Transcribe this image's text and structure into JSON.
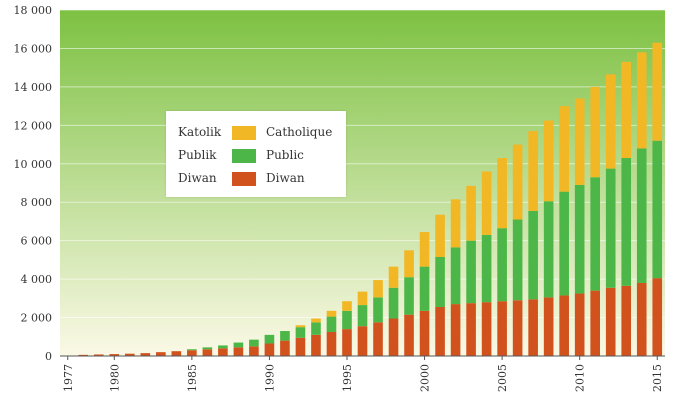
{
  "chart_data": {
    "type": "bar",
    "stacked": true,
    "x": [
      1977,
      1978,
      1979,
      1980,
      1981,
      1982,
      1983,
      1984,
      1985,
      1986,
      1987,
      1988,
      1989,
      1990,
      1991,
      1992,
      1993,
      1994,
      1995,
      1996,
      1997,
      1998,
      1999,
      2000,
      2001,
      2002,
      2003,
      2004,
      2005,
      2006,
      2007,
      2008,
      2009,
      2010,
      2011,
      2012,
      2013,
      2014,
      2015
    ],
    "x_tick_labels": [
      "1977",
      "1980",
      "1985",
      "1990",
      "1995",
      "2000",
      "2005",
      "2010",
      "2015"
    ],
    "y_tick_labels": [
      "0",
      "2 000",
      "4 000",
      "6 000",
      "8 000",
      "10 000",
      "12 000",
      "14 000",
      "16 000",
      "18 000"
    ],
    "ylim": [
      0,
      18000
    ],
    "series": [
      {
        "name": "Diwan",
        "color": "#d2521e",
        "values": [
          20,
          60,
          80,
          100,
          120,
          150,
          200,
          250,
          300,
          350,
          400,
          450,
          500,
          650,
          800,
          950,
          1100,
          1250,
          1400,
          1550,
          1750,
          1950,
          2150,
          2350,
          2550,
          2700,
          2750,
          2800,
          2850,
          2900,
          2950,
          3050,
          3150,
          3250,
          3400,
          3550,
          3650,
          3800,
          4050
        ]
      },
      {
        "name": "Public",
        "color": "#4cb748",
        "values": [
          0,
          0,
          0,
          0,
          0,
          0,
          0,
          0,
          50,
          100,
          150,
          250,
          350,
          450,
          500,
          550,
          650,
          800,
          950,
          1100,
          1300,
          1600,
          1950,
          2300,
          2600,
          2950,
          3250,
          3500,
          3800,
          4200,
          4600,
          5000,
          5400,
          5650,
          5900,
          6200,
          6650,
          7000,
          7150
        ]
      },
      {
        "name": "Catholique",
        "color": "#f2b724",
        "values": [
          0,
          0,
          0,
          0,
          0,
          0,
          0,
          0,
          0,
          0,
          0,
          0,
          0,
          0,
          0,
          100,
          200,
          300,
          500,
          700,
          900,
          1100,
          1400,
          1800,
          2200,
          2500,
          2850,
          3300,
          3650,
          3900,
          4150,
          4200,
          4450,
          4500,
          4700,
          4900,
          5000,
          5000,
          5100
        ]
      }
    ],
    "legend": {
      "position": "middle-left",
      "rows": [
        {
          "left": "Katolik",
          "right": "Catholique",
          "color": "#f2b724"
        },
        {
          "left": "Publik",
          "right": "Public",
          "color": "#4cb748"
        },
        {
          "left": "Diwan",
          "right": "Diwan",
          "color": "#d2521e"
        }
      ]
    },
    "background": {
      "top": "#7dc142",
      "bottom": "#fbf9e6"
    },
    "grid": true
  }
}
